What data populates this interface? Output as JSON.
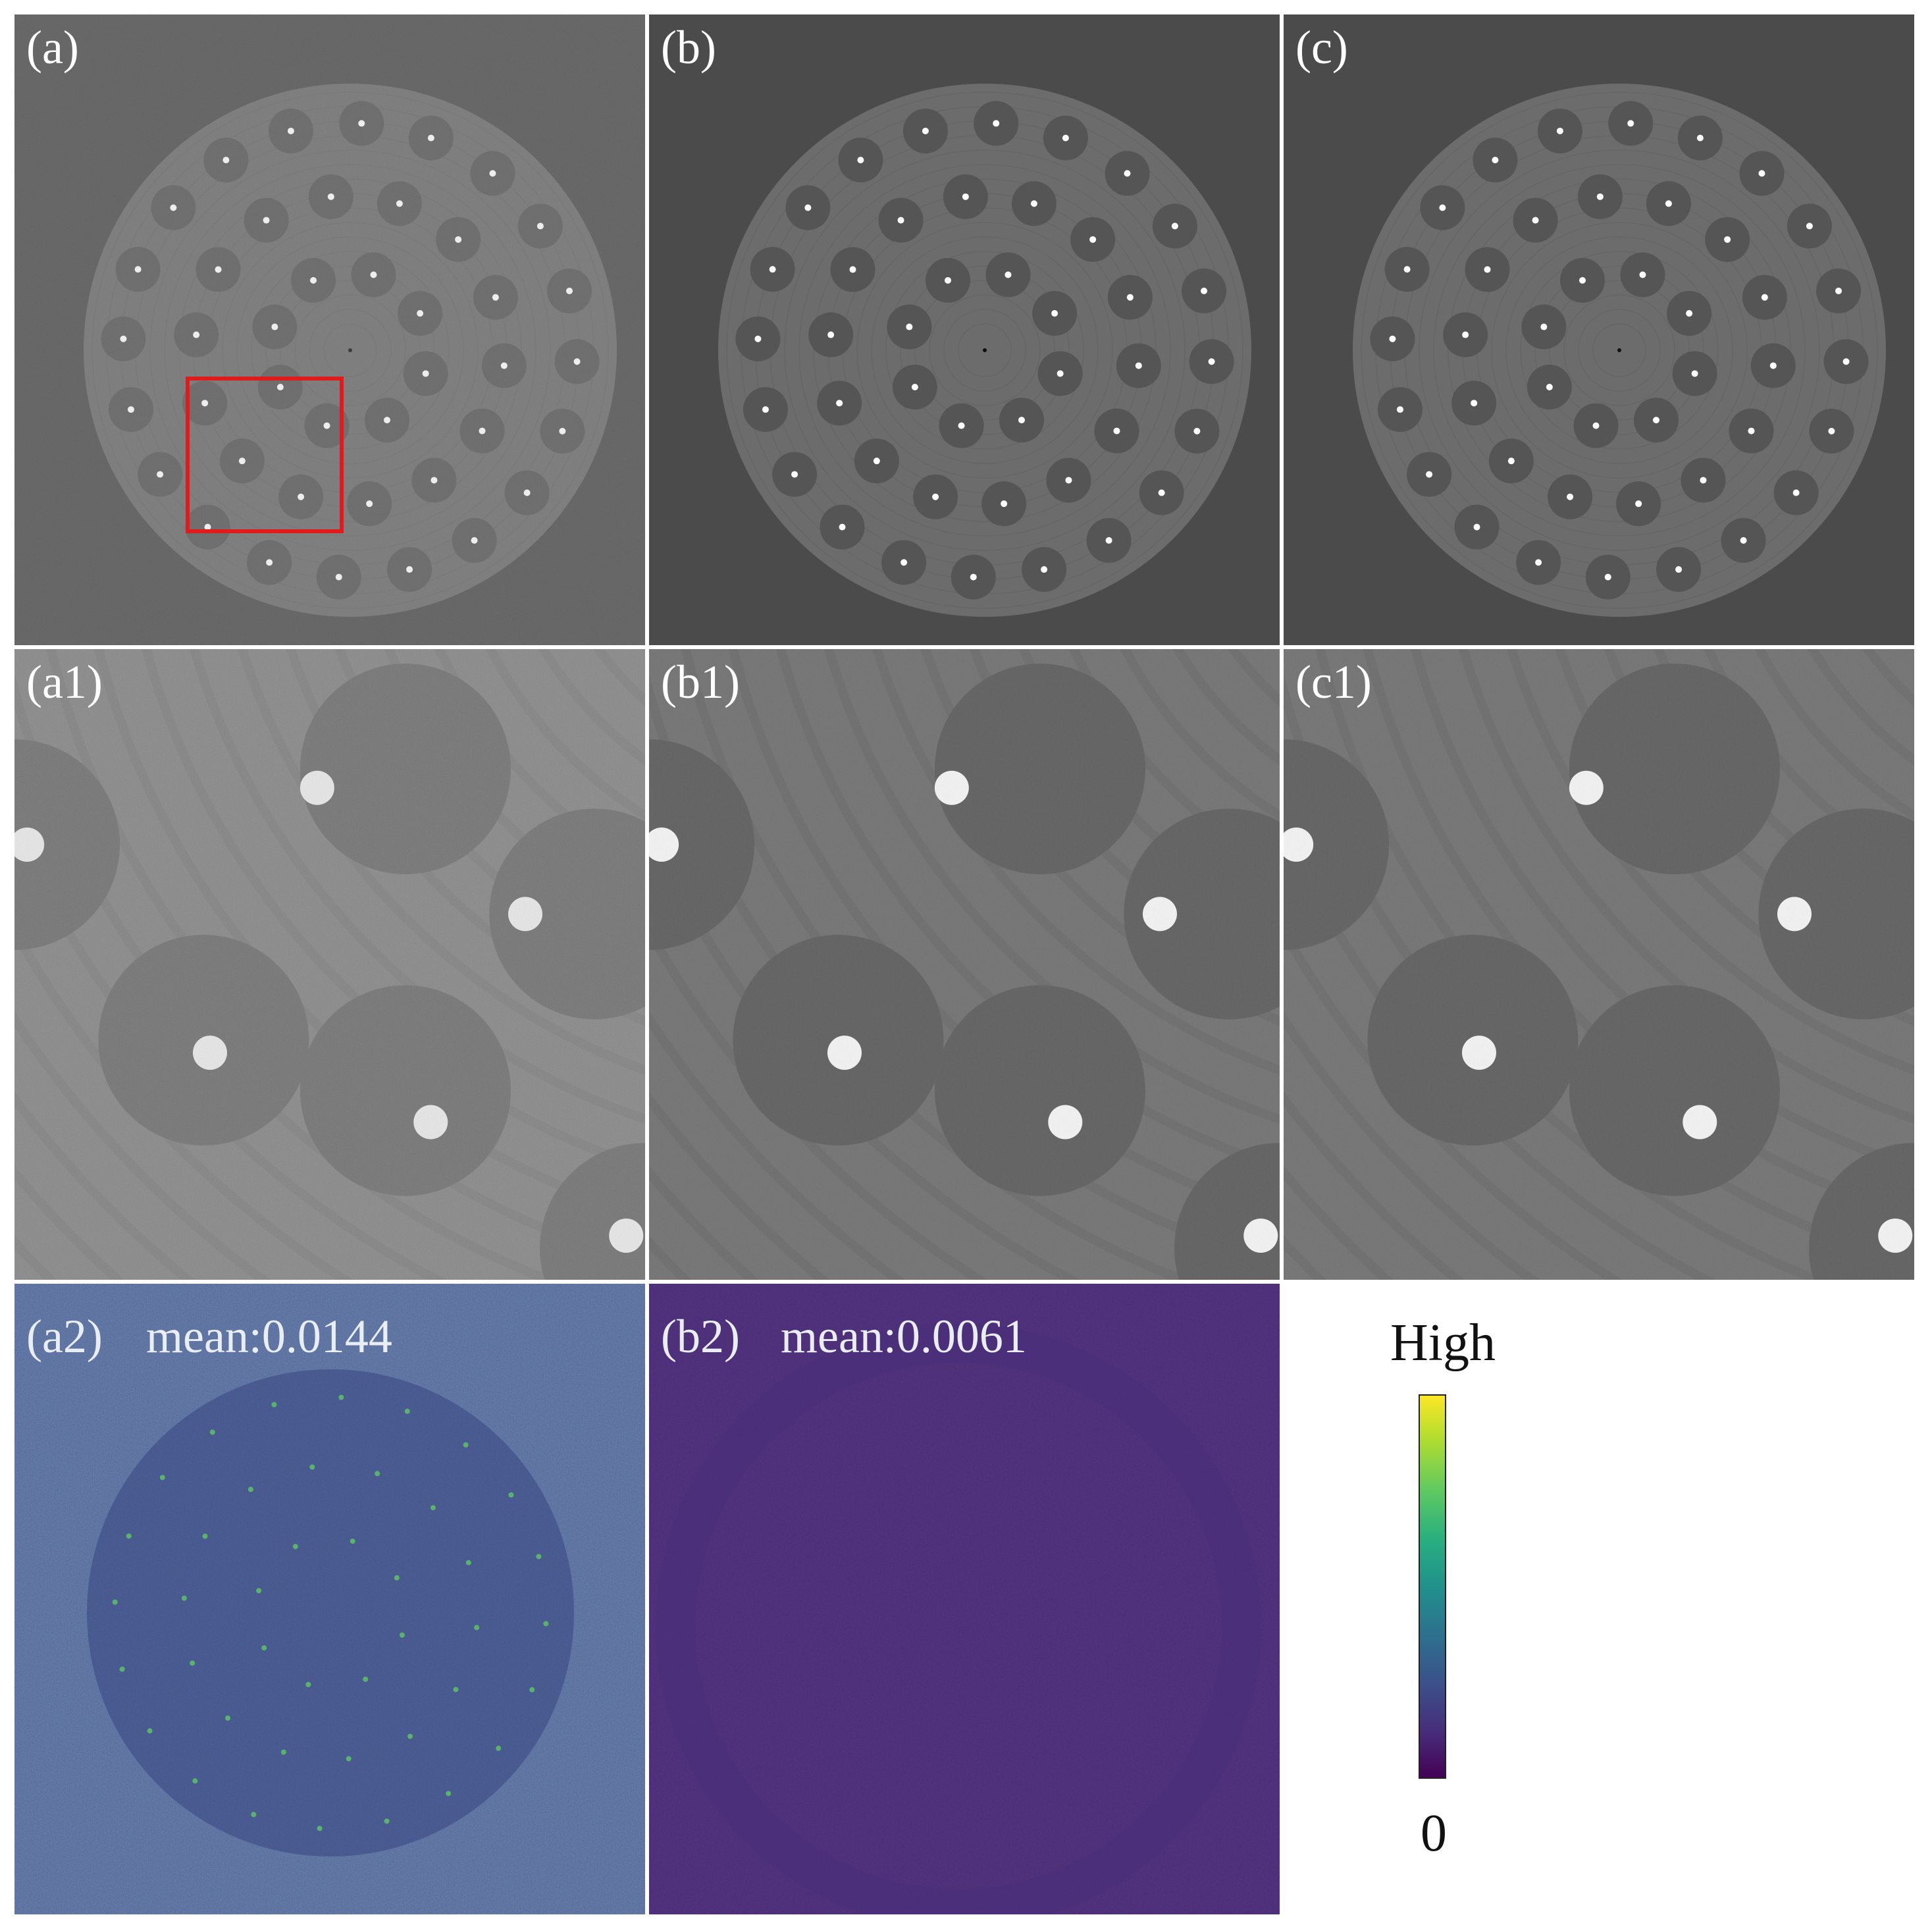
{
  "panels": {
    "a": {
      "label": "(a)"
    },
    "b": {
      "label": "(b)"
    },
    "c": {
      "label": "(c)"
    },
    "a1": {
      "label": "(a1)"
    },
    "b1": {
      "label": "(b1)"
    },
    "c1": {
      "label": "(c1)"
    },
    "a2": {
      "label": "(a2)",
      "mean": "mean:0.0144"
    },
    "b2": {
      "label": "(b2)",
      "mean": "mean:0.0061"
    }
  },
  "colorbar": {
    "high_label": "High",
    "low_label": "0",
    "colormap": "viridis",
    "colors": [
      "#440154",
      "#3b528b",
      "#21918c",
      "#5ec962",
      "#fde725"
    ]
  },
  "roi_box_color": "#e31a1c",
  "background_color": "#4b4b4b"
}
